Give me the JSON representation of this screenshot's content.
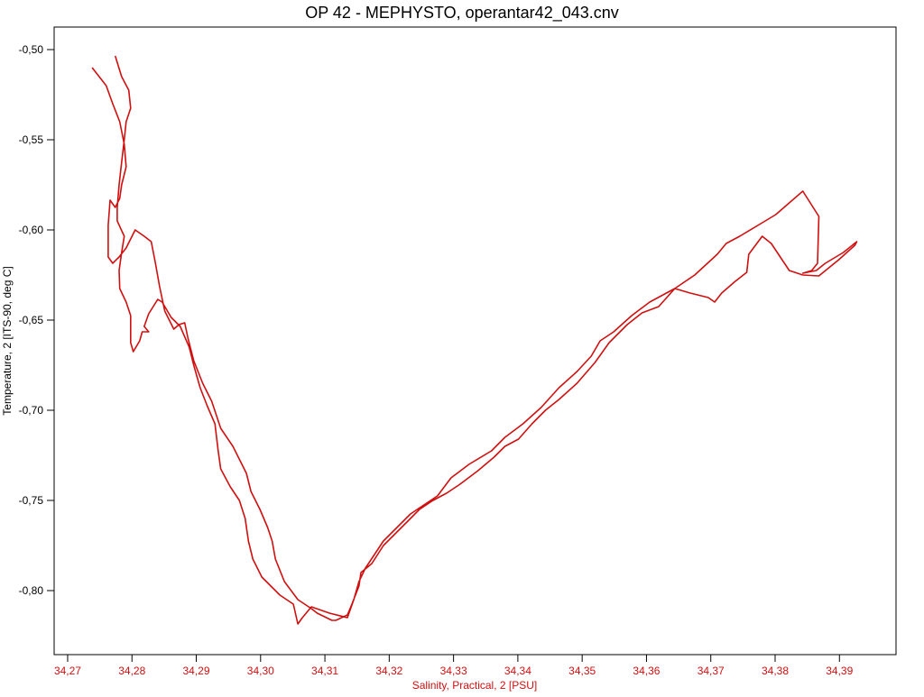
{
  "chart_data": {
    "type": "line",
    "title": "OP 42 - MEPHYSTO, operantar42_043.cnv",
    "x_label": "Salinity, Practical, 2 [PSU]",
    "y_label": "Temperature, 2 [ITS-90, deg C]",
    "x_axis_color": "#d01010",
    "xlim": [
      34.2679,
      34.3988
    ],
    "ylim": [
      -0.8355,
      -0.4875
    ],
    "xticks": [
      {
        "value": 34.27,
        "label": "34,27"
      },
      {
        "value": 34.28,
        "label": "34,28"
      },
      {
        "value": 34.29,
        "label": "34,29"
      },
      {
        "value": 34.3,
        "label": "34,30"
      },
      {
        "value": 34.31,
        "label": "34,31"
      },
      {
        "value": 34.32,
        "label": "34,32"
      },
      {
        "value": 34.33,
        "label": "34,33"
      },
      {
        "value": 34.34,
        "label": "34,34"
      },
      {
        "value": 34.35,
        "label": "34,35"
      },
      {
        "value": 34.36,
        "label": "34,36"
      },
      {
        "value": 34.37,
        "label": "34,37"
      },
      {
        "value": 34.38,
        "label": "34,38"
      },
      {
        "value": 34.39,
        "label": "34,39"
      }
    ],
    "yticks": [
      {
        "value": -0.5,
        "label": "-0,50"
      },
      {
        "value": -0.55,
        "label": "-0,55"
      },
      {
        "value": -0.6,
        "label": "-0,60"
      },
      {
        "value": -0.65,
        "label": "-0,65"
      },
      {
        "value": -0.7,
        "label": "-0,70"
      },
      {
        "value": -0.75,
        "label": "-0,75"
      },
      {
        "value": -0.8,
        "label": "-0,80"
      }
    ],
    "series": [
      {
        "color": "#d01010",
        "x": [
          34.2738,
          34.276,
          34.277,
          34.2781,
          34.2788,
          34.2791,
          34.2784,
          34.2781,
          34.2774,
          34.2766,
          34.2763,
          34.2763,
          34.277,
          34.278,
          34.2791,
          34.2805,
          34.2819,
          34.283,
          34.2836,
          34.2843,
          34.2851,
          34.2865,
          34.2873,
          34.2882,
          34.2887,
          34.2896,
          34.291,
          34.2924,
          34.2938,
          34.2957,
          34.2971,
          34.2978,
          34.2985,
          34.2999,
          34.3011,
          34.3018,
          34.3023,
          34.3037,
          34.3058,
          34.3079,
          34.3088,
          34.3111,
          34.3117,
          34.3135,
          34.3142,
          34.3153,
          34.3156,
          34.3173,
          34.3191,
          34.3205,
          34.3233,
          34.3247,
          34.3268,
          34.3289,
          34.331,
          34.3338,
          34.3363,
          34.338,
          34.3401,
          34.3422,
          34.3443,
          34.3464,
          34.3492,
          34.352,
          34.3542,
          34.357,
          34.3593,
          34.3619,
          34.3644,
          34.3675,
          34.371,
          34.3724,
          34.3745,
          34.3773,
          34.3801,
          34.3843,
          34.3868,
          34.3866,
          34.3857,
          34.3843,
          34.3864,
          34.3878,
          34.3906,
          34.3927,
          34.3924,
          34.3899,
          34.3868,
          34.3843,
          34.3822,
          34.3808,
          34.3794,
          34.378,
          34.3759,
          34.3756,
          34.3738,
          34.3717,
          34.3706,
          34.3696,
          34.3668,
          34.3644,
          34.3605,
          34.3577,
          34.3549,
          34.3528,
          34.3514,
          34.3492,
          34.3464,
          34.3436,
          34.3408,
          34.338,
          34.3359,
          34.3324,
          34.3296,
          34.3275,
          34.3254,
          34.3233,
          34.3212,
          34.3191,
          34.3177,
          34.3163,
          34.3153,
          34.3145,
          34.3135,
          34.3107,
          34.3079,
          34.3065,
          34.3058,
          34.3051,
          34.303,
          34.3002,
          34.2988,
          34.2981,
          34.2976,
          34.2967,
          34.2953,
          34.2938,
          34.2934,
          34.2929,
          34.2917,
          34.2906,
          34.2896,
          34.2889,
          34.2875,
          34.2861,
          34.2847,
          34.284,
          34.2826,
          34.2819,
          34.2826,
          34.2816,
          34.2812,
          34.2802,
          34.2798,
          34.2798,
          34.2791,
          34.2781,
          34.278,
          34.2784,
          34.2788,
          34.2777,
          34.2777,
          34.278,
          34.2784,
          34.2788,
          34.2791,
          34.2798,
          34.2795,
          34.2784,
          34.2774
        ],
        "values": [
          -0.51,
          -0.52,
          -0.53,
          -0.54,
          -0.5525,
          -0.565,
          -0.575,
          -0.5825,
          -0.5875,
          -0.5835,
          -0.5975,
          -0.615,
          -0.6185,
          -0.615,
          -0.61,
          -0.6,
          -0.6035,
          -0.6065,
          -0.6175,
          -0.6315,
          -0.645,
          -0.655,
          -0.6525,
          -0.6515,
          -0.66,
          -0.6725,
          -0.685,
          -0.695,
          -0.71,
          -0.72,
          -0.73,
          -0.735,
          -0.745,
          -0.755,
          -0.765,
          -0.7725,
          -0.7825,
          -0.795,
          -0.805,
          -0.81,
          -0.8125,
          -0.8165,
          -0.8165,
          -0.8135,
          -0.8075,
          -0.7975,
          -0.79,
          -0.785,
          -0.775,
          -0.77,
          -0.76,
          -0.755,
          -0.75,
          -0.746,
          -0.741,
          -0.7335,
          -0.726,
          -0.72,
          -0.716,
          -0.7075,
          -0.7,
          -0.694,
          -0.685,
          -0.6735,
          -0.6625,
          -0.6525,
          -0.646,
          -0.6425,
          -0.6325,
          -0.625,
          -0.6135,
          -0.6075,
          -0.6035,
          -0.5975,
          -0.5915,
          -0.5785,
          -0.5925,
          -0.6185,
          -0.6225,
          -0.624,
          -0.6225,
          -0.6185,
          -0.6125,
          -0.6065,
          -0.6085,
          -0.6165,
          -0.6255,
          -0.625,
          -0.6225,
          -0.615,
          -0.6075,
          -0.6035,
          -0.6135,
          -0.6235,
          -0.6285,
          -0.635,
          -0.64,
          -0.6375,
          -0.635,
          -0.6325,
          -0.64,
          -0.6475,
          -0.6565,
          -0.6615,
          -0.67,
          -0.6785,
          -0.6875,
          -0.6985,
          -0.7075,
          -0.715,
          -0.7225,
          -0.73,
          -0.7375,
          -0.7475,
          -0.7525,
          -0.7575,
          -0.765,
          -0.7725,
          -0.78,
          -0.7875,
          -0.795,
          -0.805,
          -0.815,
          -0.8125,
          -0.809,
          -0.815,
          -0.8185,
          -0.8075,
          -0.8025,
          -0.7925,
          -0.7825,
          -0.7725,
          -0.76,
          -0.75,
          -0.7425,
          -0.7325,
          -0.7225,
          -0.7075,
          -0.6975,
          -0.6875,
          -0.675,
          -0.665,
          -0.6535,
          -0.6485,
          -0.64,
          -0.6385,
          -0.6465,
          -0.6535,
          -0.6565,
          -0.6565,
          -0.6615,
          -0.6675,
          -0.6625,
          -0.6475,
          -0.64,
          -0.6325,
          -0.6225,
          -0.6125,
          -0.6035,
          -0.595,
          -0.5875,
          -0.575,
          -0.5625,
          -0.55,
          -0.54,
          -0.5325,
          -0.5225,
          -0.515,
          -0.5035
        ]
      }
    ]
  }
}
